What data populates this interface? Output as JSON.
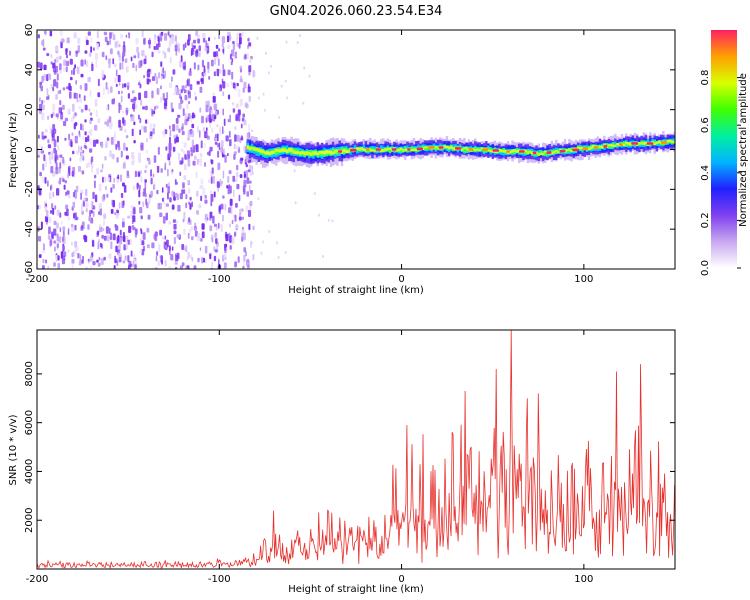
{
  "figure_title": "GN04.2026.060.23.54.E34",
  "chart_data": [
    {
      "type": "heatmap",
      "title": "GN04.2026.060.23.54.E34",
      "xlabel": "Height of straight line (km)",
      "ylabel": "Frequency (Hz)",
      "xlim": [
        -200,
        150
      ],
      "ylim": [
        -60,
        60
      ],
      "x_ticks": [
        -200,
        -100,
        0,
        100
      ],
      "y_ticks": [
        -60,
        -40,
        -20,
        0,
        20,
        40,
        60
      ],
      "noise_region_x": [
        -200,
        -85
      ],
      "signal_track": {
        "x": [
          -85,
          -75,
          -65,
          -55,
          -45,
          -35,
          -25,
          -15,
          -5,
          5,
          15,
          25,
          35,
          45,
          55,
          65,
          75,
          85,
          95,
          105,
          115,
          125,
          135,
          150
        ],
        "freq": [
          1,
          -2,
          0,
          -2,
          -2,
          -1,
          0,
          0,
          0,
          0,
          1,
          1,
          0,
          0,
          -1,
          -1,
          -2,
          -1,
          0,
          1,
          2,
          3,
          3,
          4
        ]
      },
      "colorbar": {
        "label": "Normalized spectral amplitude",
        "range": [
          0,
          1
        ],
        "ticks": [
          "0.0",
          "0.2",
          "0.4",
          "0.6",
          "0.8"
        ],
        "colors": [
          "#ffffff",
          "#c8a8f0",
          "#8040f0",
          "#2020ff",
          "#00b4ff",
          "#00f0a0",
          "#40ff00",
          "#d8ff00",
          "#ffa000",
          "#ff2060"
        ]
      }
    },
    {
      "type": "line",
      "xlabel": "Height of straight line (km)",
      "ylabel": "SNR (10 * v/v)",
      "xlim": [
        -200,
        150
      ],
      "ylim": [
        0,
        9800
      ],
      "x_ticks": [
        -200,
        -100,
        0,
        100
      ],
      "y_ticks": [
        2000,
        4000,
        6000,
        8000
      ],
      "color": "#e8302c",
      "envelope": {
        "x": [
          -200,
          -110,
          -85,
          -80,
          -75,
          -70,
          -60,
          -50,
          -40,
          -30,
          -20,
          -10,
          -5,
          0,
          10,
          20,
          30,
          40,
          50,
          55,
          60,
          65,
          70,
          80,
          90,
          100,
          110,
          120,
          130,
          135,
          140,
          145,
          150
        ],
        "base": [
          250,
          250,
          300,
          350,
          600,
          800,
          700,
          800,
          900,
          900,
          1000,
          1100,
          1500,
          1800,
          2000,
          2200,
          2300,
          2400,
          2700,
          2800,
          3000,
          2800,
          2600,
          2000,
          1800,
          2000,
          2200,
          2300,
          2400,
          2300,
          2100,
          2000,
          2000
        ],
        "amp": [
          100,
          120,
          200,
          600,
          1100,
          1400,
          1200,
          1400,
          1600,
          1700,
          1800,
          2000,
          2600,
          3200,
          3600,
          3800,
          4000,
          4200,
          4600,
          4900,
          5300,
          5000,
          4600,
          3800,
          3500,
          3800,
          4000,
          4300,
          4500,
          4400,
          4100,
          3700,
          3500
        ]
      },
      "peaks": [
        {
          "x": 60,
          "y": 9800
        },
        {
          "x": 131,
          "y": 8400
        },
        {
          "x": 52,
          "y": 8200
        },
        {
          "x": 118,
          "y": 8100
        },
        {
          "x": 35,
          "y": 7300
        },
        {
          "x": 75,
          "y": 7200
        },
        {
          "x": 3,
          "y": 5900
        },
        {
          "x": -70,
          "y": 2400
        }
      ]
    }
  ]
}
